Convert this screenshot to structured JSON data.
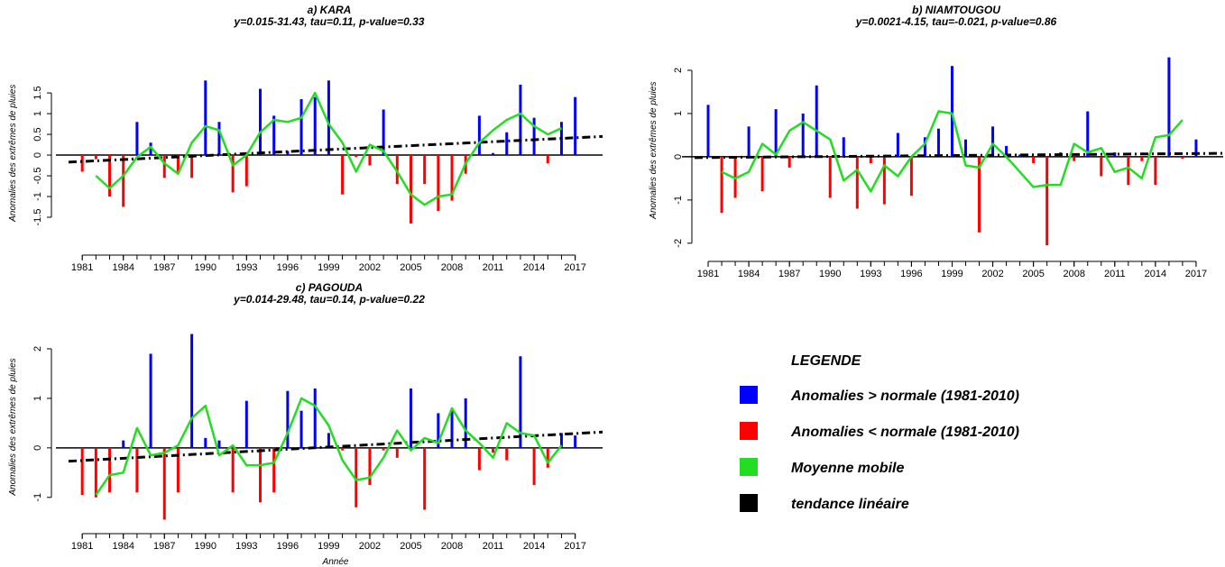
{
  "chart_data": [
    {
      "type": "bar",
      "title": "a) KARA",
      "subtitle": "y=0.015-31.43, tau=0.11, p-value=0.33",
      "ylabel": "Anomalies des extrêmes de pluies",
      "x": [
        1981,
        1982,
        1983,
        1984,
        1985,
        1986,
        1987,
        1988,
        1989,
        1990,
        1991,
        1992,
        1993,
        1994,
        1995,
        1996,
        1997,
        1998,
        1999,
        2000,
        2001,
        2002,
        2003,
        2004,
        2005,
        2006,
        2007,
        2008,
        2009,
        2010,
        2011,
        2012,
        2013,
        2014,
        2015,
        2016,
        2017
      ],
      "values": [
        -0.4,
        -0.1,
        -1.0,
        -1.25,
        0.8,
        0.3,
        -0.55,
        -0.45,
        -0.55,
        1.8,
        0.8,
        -0.9,
        -0.75,
        1.6,
        0.95,
        0.1,
        1.35,
        1.4,
        1.8,
        -0.95,
        -0.05,
        -0.25,
        1.1,
        -0.7,
        -1.65,
        -0.7,
        -1.35,
        -1.1,
        -0.45,
        0.95,
        0.05,
        0.55,
        1.7,
        0.9,
        -0.2,
        0.8,
        1.4
      ],
      "colors": {
        "positive": "#0000ff",
        "negative": "#ff0000"
      },
      "moving_average": {
        "color": "#22dd22",
        "values": [
          null,
          -0.5,
          -0.8,
          -0.5,
          -0.05,
          0.2,
          -0.2,
          -0.45,
          0.3,
          0.7,
          0.6,
          -0.25,
          0.0,
          0.55,
          0.85,
          0.8,
          0.9,
          1.5,
          0.75,
          0.3,
          -0.4,
          0.25,
          0.1,
          -0.4,
          -0.95,
          -1.2,
          -1.0,
          -0.95,
          -0.2,
          0.3,
          0.6,
          0.85,
          1.0,
          0.7,
          0.5,
          0.65,
          null
        ]
      },
      "trend": {
        "color": "#000000",
        "x": [
          1980,
          2019
        ],
        "values": [
          -0.17,
          0.45
        ]
      },
      "xlim": [
        1980,
        2019
      ],
      "ylim": [
        -1.75,
        1.85
      ],
      "xticks": [
        1981,
        1984,
        1987,
        1990,
        1993,
        1996,
        1999,
        2002,
        2005,
        2008,
        2011,
        2014,
        2017
      ],
      "yticks": [
        -1.5,
        -1.0,
        -0.5,
        0.0,
        0.5,
        1.0,
        1.5
      ],
      "grid": false
    },
    {
      "type": "bar",
      "title": "b) NIAMTOUGOU",
      "subtitle": "y=0.0021-4.15, tau=-0.021, p-value=0.86",
      "ylabel": "Anomalies des extrêmes de pluies",
      "x": [
        1981,
        1982,
        1983,
        1984,
        1985,
        1986,
        1987,
        1988,
        1989,
        1990,
        1991,
        1992,
        1993,
        1994,
        1995,
        1996,
        1997,
        1998,
        1999,
        2000,
        2001,
        2002,
        2003,
        2004,
        2005,
        2006,
        2007,
        2008,
        2009,
        2010,
        2011,
        2012,
        2013,
        2014,
        2015,
        2016,
        2017
      ],
      "values": [
        1.2,
        -1.3,
        -0.95,
        0.7,
        -0.8,
        1.1,
        -0.25,
        1.0,
        1.65,
        -0.95,
        0.45,
        -1.2,
        -0.15,
        -1.1,
        0.55,
        -0.9,
        0.45,
        0.65,
        2.1,
        0.4,
        -1.75,
        0.7,
        0.25,
        0.05,
        -0.15,
        -2.05,
        0.1,
        -0.1,
        1.05,
        -0.45,
        0.1,
        -0.65,
        -0.1,
        -0.65,
        2.3,
        -0.05,
        0.4
      ],
      "colors": {
        "positive": "#0000ff",
        "negative": "#ff0000"
      },
      "moving_average": {
        "color": "#22dd22",
        "values": [
          null,
          -0.35,
          -0.5,
          -0.35,
          0.3,
          0.05,
          0.6,
          0.8,
          0.6,
          0.4,
          -0.55,
          -0.3,
          -0.8,
          -0.2,
          -0.45,
          0.0,
          0.3,
          1.05,
          1.0,
          -0.2,
          -0.25,
          0.3,
          0.0,
          -0.35,
          -0.7,
          -0.65,
          -0.65,
          0.3,
          0.1,
          0.2,
          -0.35,
          -0.25,
          -0.5,
          0.45,
          0.5,
          0.85,
          null
        ]
      },
      "trend": {
        "color": "#000000",
        "x": [
          1980,
          2019
        ],
        "values": [
          -0.02,
          0.08
        ]
      },
      "xlim": [
        1980,
        2019
      ],
      "ylim": [
        -2.15,
        2.45
      ],
      "xticks": [
        1981,
        1984,
        1987,
        1990,
        1993,
        1996,
        1999,
        2002,
        2005,
        2008,
        2011,
        2014,
        2017
      ],
      "yticks": [
        -2,
        -1,
        0,
        1,
        2
      ],
      "grid": false
    },
    {
      "type": "bar",
      "title": "c) PAGOUDA",
      "subtitle": "y=0.014-29.48, tau=0.14, p-value=0.22",
      "ylabel": "Anomalies des extrêmes de pluies",
      "xlabel": "Année",
      "x": [
        1981,
        1982,
        1983,
        1984,
        1985,
        1986,
        1987,
        1988,
        1989,
        1990,
        1991,
        1992,
        1993,
        1994,
        1995,
        1996,
        1997,
        1998,
        1999,
        2000,
        2001,
        2002,
        2003,
        2004,
        2005,
        2006,
        2007,
        2008,
        2009,
        2010,
        2011,
        2012,
        2013,
        2014,
        2015,
        2016,
        2017
      ],
      "values": [
        -0.95,
        -1.0,
        -0.9,
        0.15,
        -0.9,
        1.9,
        -1.45,
        -0.9,
        2.3,
        0.2,
        0.15,
        -0.9,
        0.95,
        -1.1,
        -0.9,
        1.15,
        0.75,
        1.2,
        0.3,
        -0.05,
        -1.2,
        -0.75,
        -0.05,
        -0.2,
        1.2,
        -1.25,
        0.7,
        0.75,
        1.0,
        -0.45,
        -0.1,
        -0.25,
        1.85,
        -0.75,
        -0.4,
        0.3,
        0.25
      ],
      "colors": {
        "positive": "#0000ff",
        "negative": "#ff0000"
      },
      "moving_average": {
        "color": "#22dd22",
        "values": [
          null,
          -0.95,
          -0.55,
          -0.5,
          0.4,
          -0.15,
          -0.1,
          0.05,
          0.6,
          0.85,
          -0.15,
          0.05,
          -0.35,
          -0.35,
          -0.3,
          0.3,
          1.0,
          0.85,
          0.45,
          -0.25,
          -0.65,
          -0.6,
          -0.2,
          0.35,
          -0.05,
          0.2,
          0.1,
          0.8,
          0.35,
          0.1,
          -0.2,
          0.5,
          0.3,
          0.25,
          -0.3,
          0.05,
          null
        ]
      },
      "trend": {
        "color": "#000000",
        "x": [
          1980,
          2019
        ],
        "values": [
          -0.27,
          0.32
        ]
      },
      "xlim": [
        1980,
        2019
      ],
      "ylim": [
        -1.55,
        2.4
      ],
      "xticks": [
        1981,
        1984,
        1987,
        1990,
        1993,
        1996,
        1999,
        2002,
        2005,
        2008,
        2011,
        2014,
        2017
      ],
      "yticks": [
        -1,
        0,
        1,
        2
      ],
      "grid": false
    }
  ],
  "legend": {
    "title": "LEGENDE",
    "items": [
      {
        "label": "Anomalies > normale (1981-2010)",
        "color": "#0000ff"
      },
      {
        "label": "Anomalies < normale (1981-2010)",
        "color": "#ff0000"
      },
      {
        "label": "Moyenne mobile",
        "color": "#22dd22"
      },
      {
        "label": "tendance linéaire",
        "color": "#000000"
      }
    ]
  }
}
